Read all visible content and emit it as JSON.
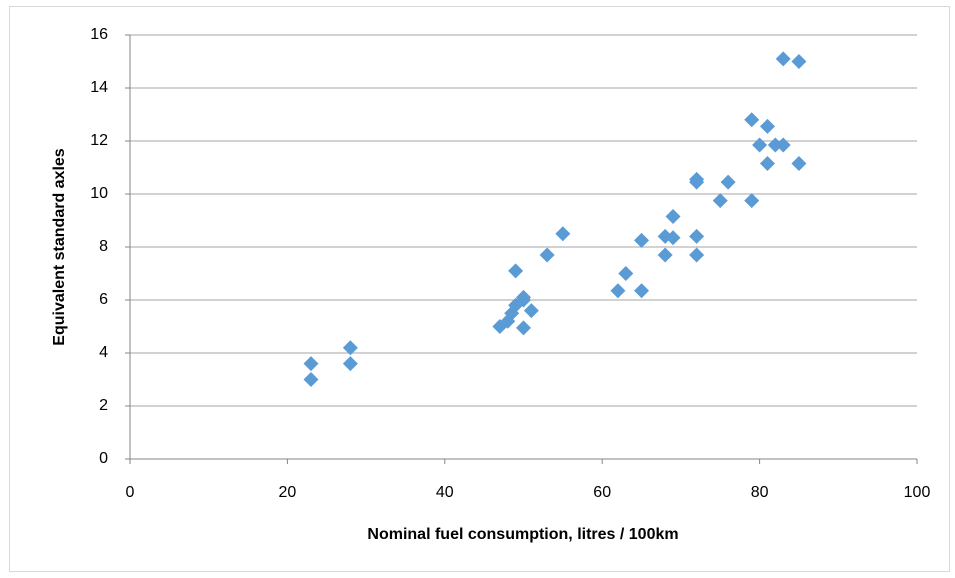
{
  "chart_data": {
    "type": "scatter",
    "x_label": "Nominal fuel consumption, litres / 100km",
    "y_label": "Equivalent standard axles",
    "color": "#5b9bd5",
    "grid": true,
    "x": [
      23,
      23,
      28,
      28,
      47,
      48,
      48.5,
      49,
      49,
      50,
      50,
      50,
      51,
      53,
      55,
      62,
      63,
      65,
      65,
      68,
      68,
      69,
      69,
      72,
      72,
      72,
      72,
      76,
      75,
      79,
      79,
      80,
      81,
      81,
      82,
      83,
      83,
      85,
      85
    ],
    "y": [
      3.6,
      3.0,
      4.2,
      3.6,
      5.0,
      5.2,
      5.5,
      5.8,
      7.1,
      6.0,
      6.1,
      4.95,
      5.6,
      7.7,
      8.5,
      6.35,
      7.0,
      6.35,
      8.25,
      8.4,
      7.7,
      8.35,
      9.15,
      8.4,
      7.7,
      10.55,
      10.45,
      10.45,
      9.75,
      9.75,
      12.8,
      11.85,
      12.55,
      11.15,
      11.85,
      11.85,
      15.1,
      15.0,
      11.15
    ],
    "xlim": [
      0,
      100
    ],
    "xticks": [
      0,
      20,
      40,
      60,
      80,
      100
    ],
    "ylim": [
      0,
      16
    ],
    "yticks": [
      0,
      2,
      4,
      6,
      8,
      10,
      12,
      14,
      16
    ]
  }
}
